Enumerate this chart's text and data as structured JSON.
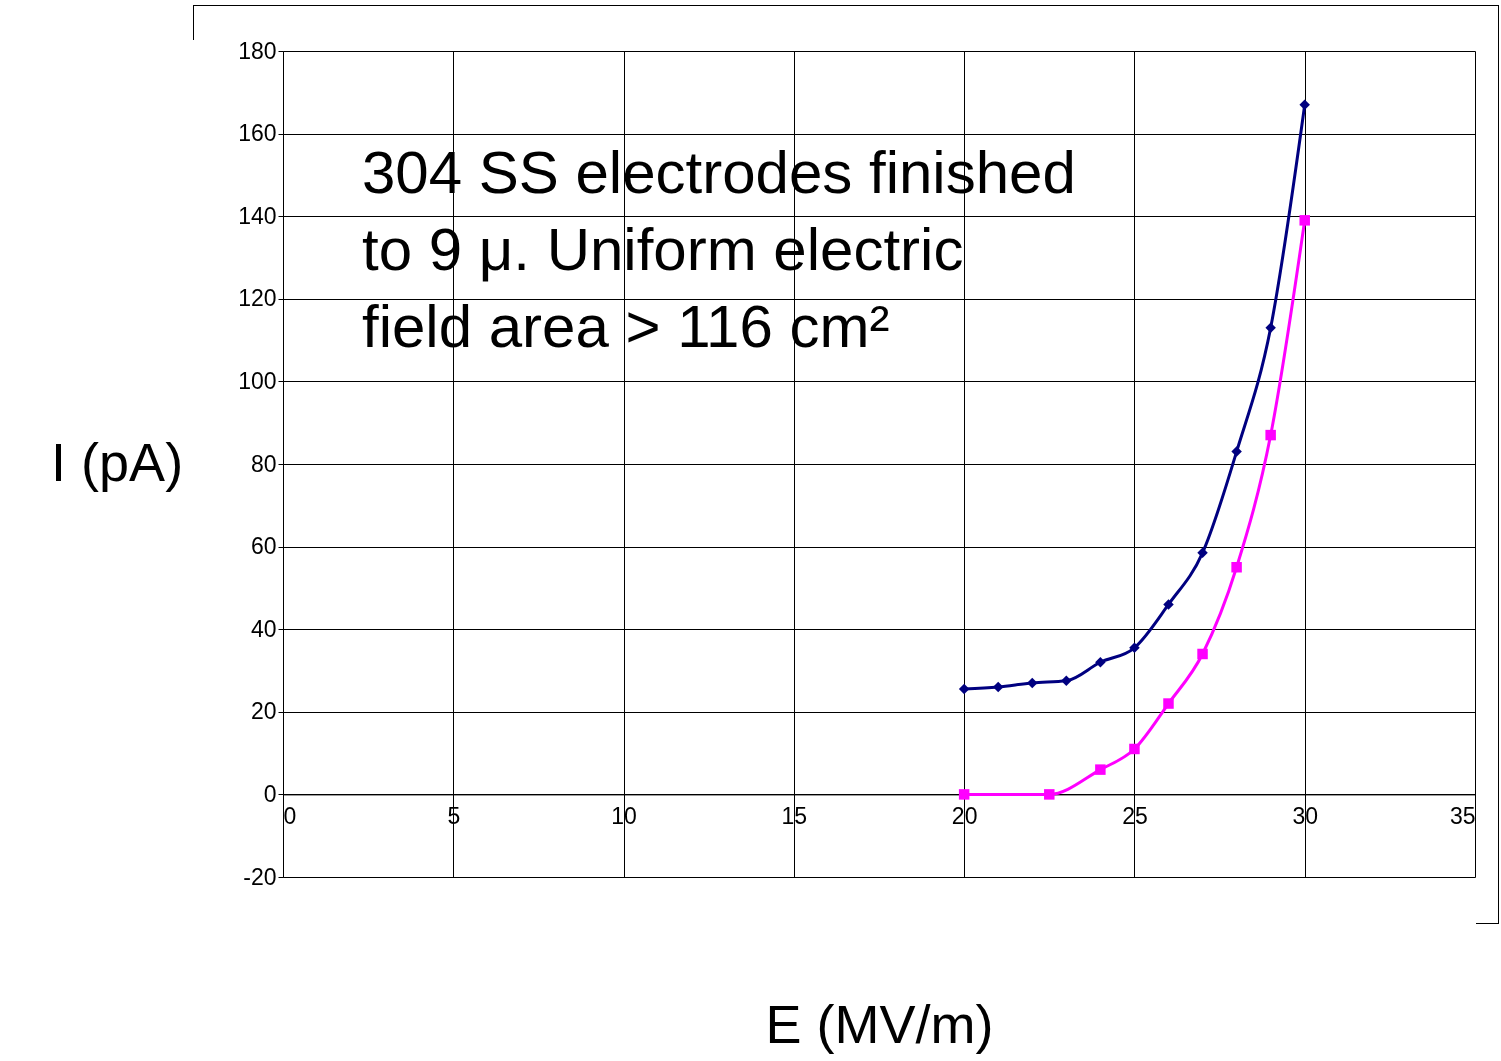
{
  "chart_data": {
    "type": "line",
    "xlabel": "E (MV/m)",
    "ylabel": "I (pA)",
    "annotations": [
      "304 SS electrodes finished to 9 μ.  Uniform electric field area > 116 cm²"
    ],
    "series": [
      {
        "color": "#000080",
        "marker": "diamond",
        "x": [
          20,
          21,
          22,
          23,
          24,
          25,
          26,
          27,
          28,
          29,
          30
        ],
        "values": [
          25.5,
          26,
          27,
          27.5,
          32,
          35.5,
          46,
          58.5,
          83,
          113,
          167
        ]
      },
      {
        "color": "#ff00ff",
        "marker": "square",
        "x": [
          20,
          22.5,
          24,
          25,
          26,
          27,
          28,
          29,
          30
        ],
        "values": [
          0,
          0,
          6,
          11,
          22,
          34,
          55,
          87,
          139
        ]
      }
    ],
    "xlim": [
      0,
      35
    ],
    "xticks": [
      0,
      5,
      10,
      15,
      20,
      25,
      30,
      35
    ],
    "ylim": [
      -20,
      180
    ],
    "yticks": [
      -20,
      0,
      20,
      40,
      60,
      80,
      100,
      120,
      140,
      160,
      180
    ],
    "grid": true,
    "line_style": "solid"
  }
}
